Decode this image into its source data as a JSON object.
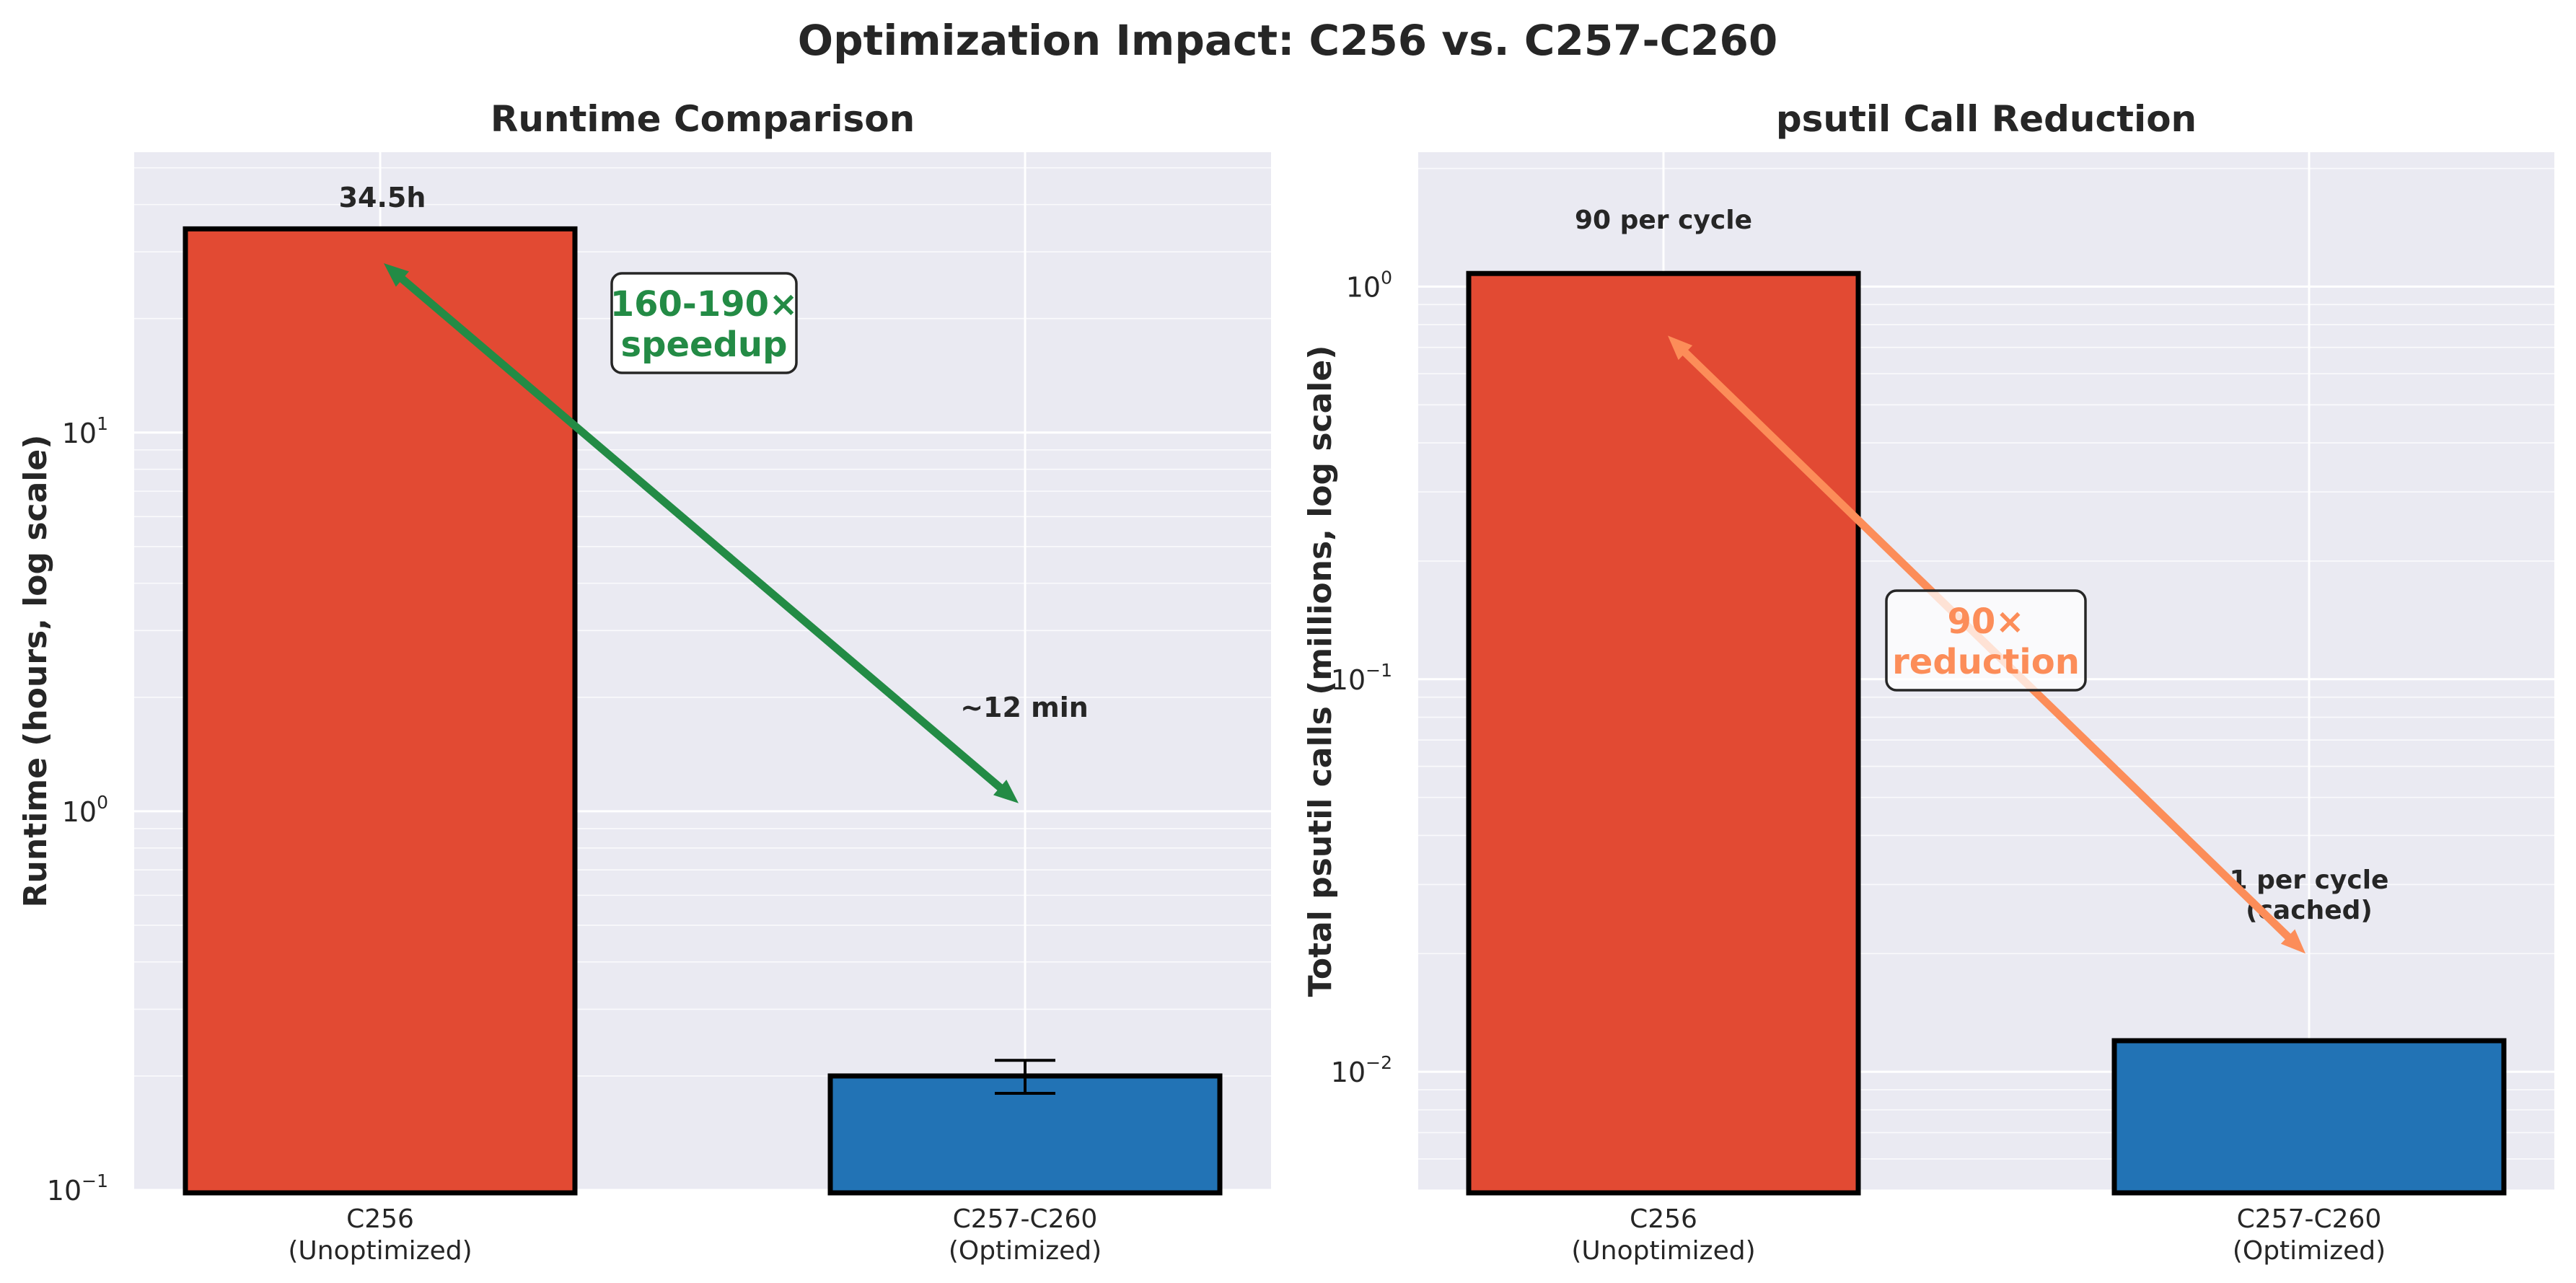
{
  "title": "Optimization Impact: C256 vs. C257-C260",
  "colors": {
    "unoptimized": "#e24a33",
    "optimized": "#2273b5",
    "speedup": "#238b45",
    "reduction": "#fc8d59",
    "panel_bg": "#eaeaf2"
  },
  "chart_data": [
    {
      "type": "bar",
      "title": "Runtime Comparison",
      "xlabel": "",
      "ylabel": "Runtime (hours, log scale)",
      "yscale": "log",
      "ylim": [
        0.1,
        55
      ],
      "grid": true,
      "categories": [
        "C256\n(Unoptimized)",
        "C257-C260\n(Optimized)"
      ],
      "values": [
        34.5,
        0.2
      ],
      "error": [
        null,
        0.02
      ],
      "bar_labels": [
        "34.5h",
        "~12 min"
      ],
      "annotation": {
        "text": "160-190×\nspeedup",
        "arrow_from": [
          0,
          28
        ],
        "arrow_to": [
          1,
          1.05
        ]
      }
    },
    {
      "type": "bar",
      "title": "psutil Call Reduction",
      "xlabel": "",
      "ylabel": "Total psutil calls (millions, log scale)",
      "yscale": "log",
      "ylim": [
        0.005,
        2.2
      ],
      "grid": true,
      "categories": [
        "C256\n(Unoptimized)",
        "C257-C260\n(Optimized)"
      ],
      "values": [
        1.08,
        0.012
      ],
      "bar_labels": [
        "90 per cycle",
        "1 per cycle\n(cached)"
      ],
      "annotation": {
        "text": "90×\nreduction",
        "arrow_from": [
          0,
          0.75
        ],
        "arrow_to": [
          1,
          0.02
        ]
      }
    }
  ]
}
